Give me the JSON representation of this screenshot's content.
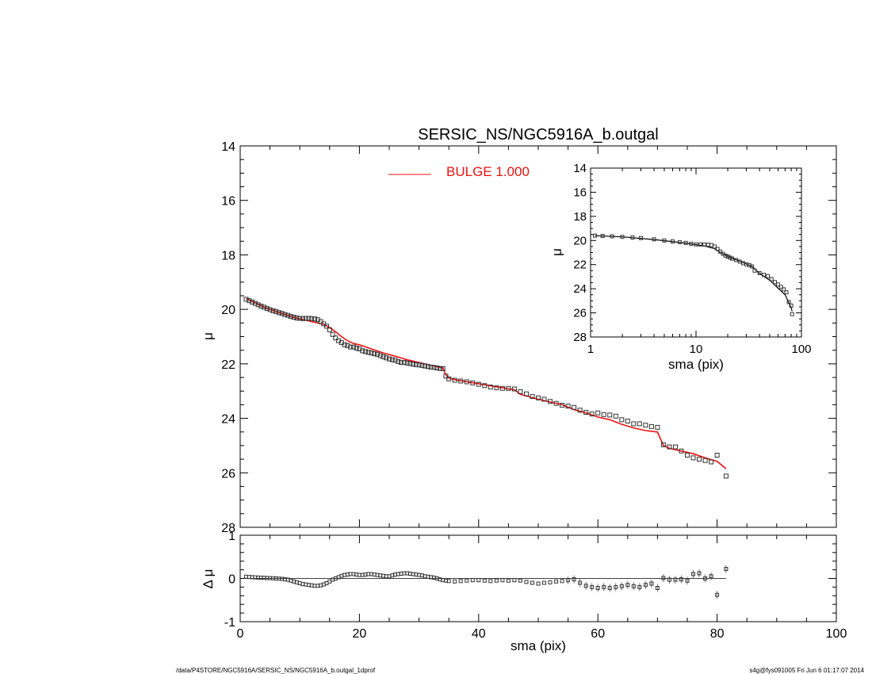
{
  "chart_data": [
    {
      "type": "scatter",
      "title": "SERSIC_NS/NGC5916A_b.outgal",
      "ylabel": "μ",
      "ylim": [
        28,
        14
      ],
      "xlim": [
        0,
        100
      ],
      "y_ticks": [
        14,
        16,
        18,
        20,
        22,
        24,
        26,
        28
      ],
      "legend": {
        "entries": [
          {
            "label": "BULGE  1.000",
            "color": "#ee1111"
          }
        ],
        "position": "top-center"
      },
      "series": [
        {
          "kind": "data",
          "marker": "square",
          "x": [
            1,
            1.5,
            2,
            2.5,
            3,
            3.5,
            4,
            4.5,
            5,
            5.5,
            6,
            6.5,
            7,
            7.5,
            8,
            8.5,
            9,
            9.5,
            10,
            10.5,
            11,
            11.5,
            12,
            12.5,
            13,
            13.5,
            14,
            14.5,
            15,
            15.5,
            16,
            16.5,
            17,
            17.5,
            18,
            18.5,
            19,
            19.5,
            20,
            20.5,
            21,
            21.5,
            22,
            22.5,
            23,
            23.5,
            24,
            24.5,
            25,
            25.5,
            26,
            26.5,
            27,
            27.5,
            28,
            28.5,
            29,
            29.5,
            30,
            30.5,
            31,
            31.5,
            32,
            32.5,
            33,
            33.5,
            34,
            34.5,
            35,
            36,
            37,
            38,
            39,
            40,
            41,
            42,
            43,
            44,
            45,
            46,
            47,
            48,
            49,
            50,
            51,
            52,
            53,
            54,
            55,
            56,
            57,
            58,
            59,
            60,
            61,
            62,
            63,
            64,
            65,
            66,
            67,
            68,
            69,
            70,
            71,
            72,
            73,
            74,
            75,
            76,
            77,
            78,
            79,
            80,
            81.5
          ],
          "y": [
            19.63,
            19.68,
            19.73,
            19.78,
            19.83,
            19.88,
            19.92,
            19.97,
            20.01,
            20.05,
            20.08,
            20.12,
            20.15,
            20.19,
            20.22,
            20.26,
            20.29,
            20.32,
            20.33,
            20.34,
            20.33,
            20.33,
            20.34,
            20.35,
            20.38,
            20.45,
            20.53,
            20.62,
            20.75,
            20.92,
            21.05,
            21.15,
            21.22,
            21.3,
            21.33,
            21.38,
            21.38,
            21.42,
            21.45,
            21.52,
            21.55,
            21.58,
            21.6,
            21.63,
            21.65,
            21.7,
            21.74,
            21.78,
            21.82,
            21.85,
            21.87,
            21.92,
            21.95,
            21.95,
            21.97,
            21.99,
            22.01,
            22.03,
            22.04,
            22.06,
            22.08,
            22.1,
            22.12,
            22.13,
            22.15,
            22.17,
            22.18,
            22.45,
            22.55,
            22.6,
            22.63,
            22.66,
            22.7,
            22.75,
            22.8,
            22.85,
            22.88,
            22.9,
            22.9,
            22.92,
            23.02,
            23.1,
            23.2,
            23.25,
            23.3,
            23.38,
            23.45,
            23.52,
            23.55,
            23.6,
            23.7,
            23.78,
            23.84,
            23.8,
            23.86,
            23.88,
            23.92,
            24.05,
            24.1,
            24.2,
            24.2,
            24.25,
            24.3,
            24.33,
            24.97,
            25.05,
            25.05,
            25.2,
            25.35,
            25.45,
            25.5,
            25.55,
            25.6,
            25.35,
            26.12
          ]
        },
        {
          "kind": "model",
          "name": "BULGE  1.000",
          "color": "#ee1111",
          "x": [
            1,
            2,
            4,
            6,
            8,
            10,
            12,
            14,
            15,
            16,
            17,
            18,
            19,
            20,
            22,
            24,
            26,
            28,
            30,
            32,
            34,
            34.5,
            35,
            36,
            40,
            44,
            46,
            47,
            50,
            54,
            56,
            58,
            60,
            62,
            64,
            66,
            68,
            70,
            71,
            72,
            74,
            76,
            78,
            80,
            81.5
          ],
          "y": [
            19.6,
            19.7,
            19.92,
            20.08,
            20.22,
            20.35,
            20.45,
            20.55,
            20.67,
            20.82,
            21.0,
            21.15,
            21.25,
            21.3,
            21.45,
            21.6,
            21.72,
            21.85,
            21.95,
            22.05,
            22.15,
            22.4,
            22.52,
            22.58,
            22.73,
            22.88,
            22.95,
            23.12,
            23.3,
            23.5,
            23.68,
            23.8,
            23.95,
            24.05,
            24.22,
            24.35,
            24.45,
            24.5,
            25.0,
            25.1,
            25.2,
            25.3,
            25.45,
            25.58,
            25.85
          ]
        }
      ]
    },
    {
      "type": "scatter",
      "ylabel": "μ",
      "xlabel": "sma (pix)",
      "x_scale": "log",
      "xlim": [
        1,
        100
      ],
      "x_ticks": [
        1,
        10,
        100
      ],
      "ylim": [
        28,
        14
      ],
      "y_ticks": [
        14,
        16,
        18,
        20,
        22,
        24,
        26,
        28
      ],
      "position": "inset top-right",
      "series": [
        {
          "kind": "data",
          "marker": "square",
          "x": [
            1.1,
            1.3,
            1.6,
            2,
            2.5,
            3,
            4,
            5,
            6,
            7,
            8,
            9,
            10,
            11,
            12,
            13,
            14,
            15,
            16,
            17,
            18,
            19,
            20,
            21,
            22,
            24,
            26,
            28,
            30,
            32,
            34,
            36,
            40,
            44,
            48,
            52,
            56,
            60,
            64,
            68,
            72,
            76,
            80,
            81.5
          ],
          "y": [
            19.6,
            19.62,
            19.65,
            19.7,
            19.75,
            19.8,
            19.9,
            20.0,
            20.08,
            20.14,
            20.2,
            20.27,
            20.32,
            20.33,
            20.33,
            20.35,
            20.38,
            20.5,
            20.7,
            20.92,
            21.1,
            21.25,
            21.33,
            21.42,
            21.5,
            21.62,
            21.75,
            21.88,
            21.97,
            22.05,
            22.15,
            22.5,
            22.7,
            22.85,
            22.95,
            23.2,
            23.45,
            23.65,
            23.85,
            24.05,
            24.3,
            25.1,
            25.4,
            26.1
          ]
        },
        {
          "kind": "model",
          "color": "#000000",
          "x": [
            1.1,
            2,
            4,
            8,
            12,
            15,
            17,
            20,
            26,
            34,
            40,
            50,
            60,
            70,
            80,
            81.5
          ],
          "y": [
            19.6,
            19.7,
            19.92,
            20.22,
            20.45,
            20.67,
            21.0,
            21.3,
            21.72,
            22.15,
            22.73,
            23.3,
            23.95,
            24.5,
            25.58,
            25.85
          ]
        }
      ]
    },
    {
      "type": "scatter",
      "xlabel": "sma (pix)",
      "ylabel": "Δ μ",
      "xlim": [
        0,
        100
      ],
      "x_ticks": [
        0,
        20,
        40,
        60,
        80,
        100
      ],
      "ylim": [
        -1,
        1
      ],
      "y_ticks": [
        -1,
        0,
        1
      ],
      "series": [
        {
          "kind": "residual",
          "marker": "square",
          "x": [
            1,
            1.5,
            2,
            2.5,
            3,
            3.5,
            4,
            4.5,
            5,
            5.5,
            6,
            6.5,
            7,
            7.5,
            8,
            8.5,
            9,
            9.5,
            10,
            10.5,
            11,
            11.5,
            12,
            12.5,
            13,
            13.5,
            14,
            14.5,
            15,
            15.5,
            16,
            16.5,
            17,
            17.5,
            18,
            18.5,
            19,
            19.5,
            20,
            20.5,
            21,
            21.5,
            22,
            22.5,
            23,
            23.5,
            24,
            24.5,
            25,
            25.5,
            26,
            26.5,
            27,
            27.5,
            28,
            28.5,
            29,
            29.5,
            30,
            30.5,
            31,
            31.5,
            32,
            32.5,
            33,
            33.5,
            34,
            34.5,
            35,
            36,
            37,
            38,
            39,
            40,
            41,
            42,
            43,
            44,
            45,
            46,
            47,
            48,
            49,
            50,
            51,
            52,
            53,
            54,
            55,
            56,
            57,
            58,
            59,
            60,
            61,
            62,
            63,
            64,
            65,
            66,
            67,
            68,
            69,
            70,
            71,
            72,
            73,
            74,
            75,
            76,
            77,
            78,
            79,
            80,
            81.5
          ],
          "y": [
            0.04,
            0.035,
            0.03,
            0.025,
            0.02,
            0.018,
            0.015,
            0.01,
            0.008,
            0.005,
            0.0,
            -0.005,
            -0.01,
            -0.02,
            -0.03,
            -0.05,
            -0.07,
            -0.09,
            -0.11,
            -0.13,
            -0.14,
            -0.15,
            -0.16,
            -0.17,
            -0.17,
            -0.16,
            -0.14,
            -0.11,
            -0.07,
            -0.03,
            0.0,
            0.03,
            0.06,
            0.08,
            0.09,
            0.1,
            0.1,
            0.09,
            0.08,
            0.08,
            0.09,
            0.1,
            0.1,
            0.09,
            0.08,
            0.07,
            0.06,
            0.05,
            0.05,
            0.07,
            0.09,
            0.1,
            0.11,
            0.12,
            0.12,
            0.11,
            0.1,
            0.09,
            0.08,
            0.07,
            0.05,
            0.04,
            0.03,
            0.02,
            0.0,
            -0.02,
            -0.04,
            -0.05,
            -0.06,
            -0.07,
            -0.06,
            -0.05,
            -0.04,
            -0.04,
            -0.05,
            -0.06,
            -0.05,
            -0.04,
            -0.05,
            -0.04,
            -0.05,
            -0.08,
            -0.1,
            -0.12,
            -0.1,
            -0.09,
            -0.07,
            -0.06,
            -0.04,
            -0.02,
            -0.1,
            -0.17,
            -0.2,
            -0.22,
            -0.2,
            -0.22,
            -0.2,
            -0.18,
            -0.15,
            -0.18,
            -0.2,
            -0.15,
            -0.12,
            -0.22,
            0.01,
            -0.03,
            -0.03,
            -0.02,
            -0.05,
            0.1,
            0.12,
            0.0,
            0.05,
            -0.38,
            0.22
          ]
        }
      ]
    }
  ],
  "footer": {
    "left": "/data/P4STORE/NGC5916A/SERSIC_NS/NGC5916A_b.outgal_1dprof",
    "right": "s4g@fys091005  Fri Jun  6 01:17:07 2014"
  }
}
